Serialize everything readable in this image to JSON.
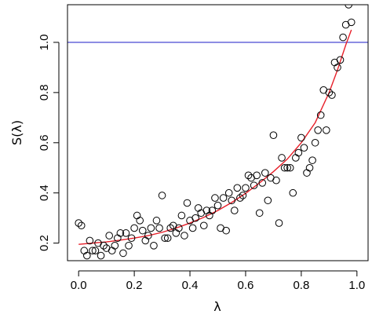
{
  "chart_data": {
    "type": "scatter",
    "title": "",
    "xlabel": "λ",
    "ylabel": "S(λ)",
    "xlim": [
      -0.04,
      1.04
    ],
    "ylim": [
      0.13,
      1.15
    ],
    "xticks": [
      0.0,
      0.2,
      0.4,
      0.6,
      0.8,
      1.0
    ],
    "xtick_labels": [
      "0.0",
      "0.2",
      "0.4",
      "0.6",
      "0.8",
      "1.0"
    ],
    "yticks": [
      0.2,
      0.4,
      0.6,
      0.8,
      1.0
    ],
    "ytick_labels": [
      "0.2",
      "0.4",
      "0.6",
      "0.8",
      "1.0"
    ],
    "grid": false,
    "legend": "none",
    "reference_line": {
      "y": 1.0,
      "color": "#3333cc"
    },
    "fit_curve": {
      "color": "#e8202a",
      "x": [
        0.0,
        0.05,
        0.1,
        0.15,
        0.2,
        0.25,
        0.3,
        0.35,
        0.4,
        0.45,
        0.5,
        0.55,
        0.6,
        0.65,
        0.7,
        0.75,
        0.8,
        0.85,
        0.9,
        0.93,
        0.96,
        0.98
      ],
      "y": [
        0.195,
        0.2,
        0.205,
        0.212,
        0.22,
        0.23,
        0.243,
        0.26,
        0.28,
        0.303,
        0.33,
        0.362,
        0.398,
        0.44,
        0.485,
        0.535,
        0.6,
        0.68,
        0.8,
        0.89,
        0.99,
        1.05
      ]
    },
    "points": {
      "marker": "open-circle",
      "color": "#000000",
      "x": [
        0.0,
        0.01,
        0.02,
        0.03,
        0.04,
        0.05,
        0.06,
        0.07,
        0.08,
        0.09,
        0.1,
        0.11,
        0.12,
        0.13,
        0.14,
        0.15,
        0.16,
        0.17,
        0.18,
        0.19,
        0.2,
        0.21,
        0.22,
        0.23,
        0.24,
        0.25,
        0.26,
        0.27,
        0.28,
        0.29,
        0.3,
        0.31,
        0.32,
        0.33,
        0.34,
        0.35,
        0.36,
        0.37,
        0.38,
        0.39,
        0.4,
        0.41,
        0.42,
        0.43,
        0.44,
        0.45,
        0.46,
        0.47,
        0.48,
        0.49,
        0.5,
        0.51,
        0.52,
        0.53,
        0.54,
        0.55,
        0.56,
        0.57,
        0.58,
        0.59,
        0.6,
        0.61,
        0.62,
        0.63,
        0.64,
        0.65,
        0.66,
        0.67,
        0.68,
        0.69,
        0.7,
        0.71,
        0.72,
        0.73,
        0.74,
        0.75,
        0.76,
        0.77,
        0.78,
        0.79,
        0.8,
        0.81,
        0.82,
        0.83,
        0.84,
        0.85,
        0.86,
        0.87,
        0.88,
        0.89,
        0.9,
        0.91,
        0.92,
        0.93,
        0.94,
        0.95,
        0.96,
        0.97,
        0.98
      ],
      "y": [
        0.28,
        0.27,
        0.17,
        0.15,
        0.21,
        0.17,
        0.17,
        0.2,
        0.15,
        0.19,
        0.18,
        0.23,
        0.17,
        0.19,
        0.22,
        0.24,
        0.16,
        0.24,
        0.19,
        0.22,
        0.26,
        0.31,
        0.29,
        0.25,
        0.21,
        0.23,
        0.26,
        0.19,
        0.29,
        0.26,
        0.39,
        0.22,
        0.22,
        0.26,
        0.27,
        0.24,
        0.26,
        0.31,
        0.23,
        0.36,
        0.29,
        0.26,
        0.3,
        0.34,
        0.32,
        0.27,
        0.33,
        0.31,
        0.33,
        0.38,
        0.35,
        0.26,
        0.38,
        0.25,
        0.4,
        0.37,
        0.33,
        0.42,
        0.38,
        0.39,
        0.42,
        0.47,
        0.46,
        0.43,
        0.47,
        0.32,
        0.44,
        0.48,
        0.37,
        0.46,
        0.63,
        0.45,
        0.28,
        0.54,
        0.5,
        0.5,
        0.5,
        0.4,
        0.54,
        0.56,
        0.62,
        0.58,
        0.48,
        0.5,
        0.53,
        0.6,
        0.65,
        0.71,
        0.81,
        0.65,
        0.8,
        0.79,
        0.92,
        0.9,
        0.93,
        1.02,
        1.07,
        1.15,
        1.08
      ]
    }
  }
}
